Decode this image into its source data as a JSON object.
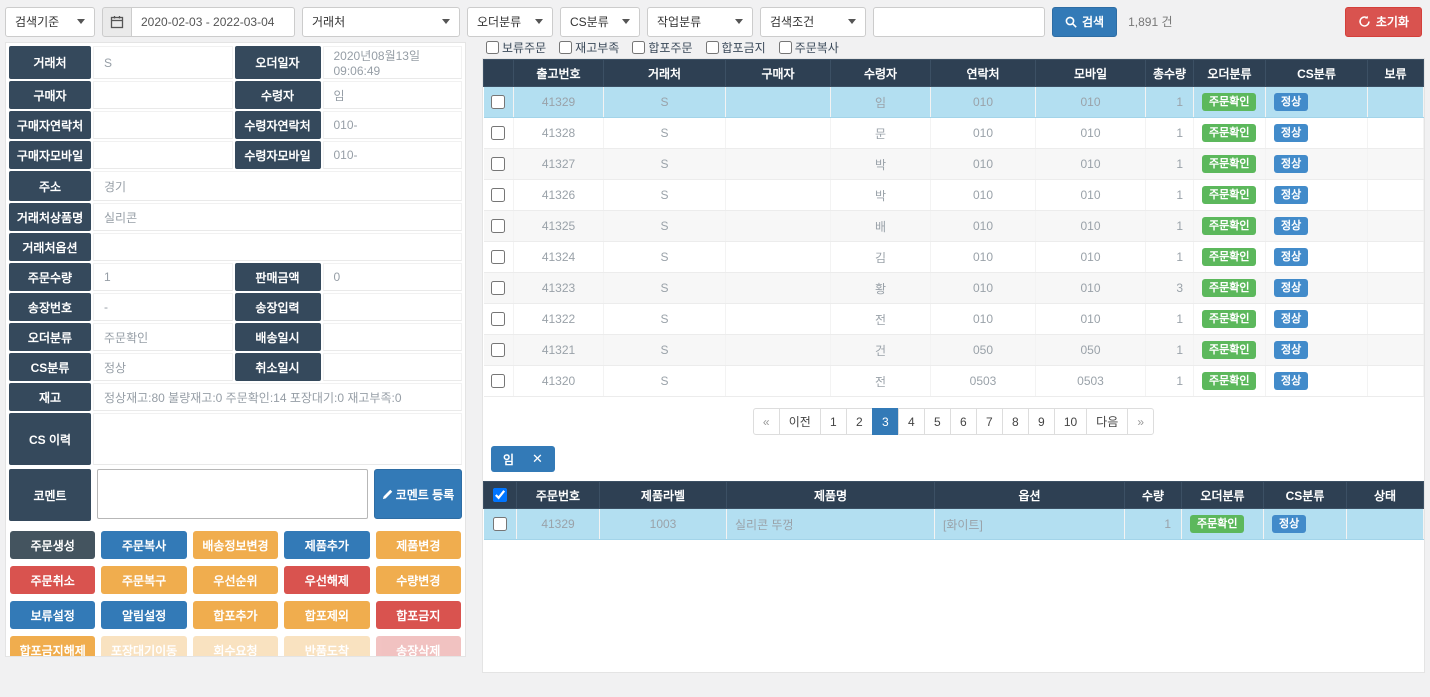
{
  "topbar": {
    "search_basis_select": "검색기준",
    "date_range": "2020-02-03 - 2022-03-04",
    "vendor_select": "거래처",
    "order_class_select": "오더분류",
    "cs_class_select": "CS분류",
    "work_class_select": "작업분류",
    "search_condition_select": "검색조건",
    "search_input_value": "",
    "search_button": "검색",
    "result_count": "1,891 건",
    "reset_button": "초기화"
  },
  "filters": {
    "checkboxes": [
      "보류주문",
      "재고부족",
      "합포주문",
      "합포금지",
      "주문복사"
    ]
  },
  "form": {
    "rows": [
      {
        "type": "pair",
        "left": {
          "label": "거래처",
          "value": "S"
        },
        "right": {
          "label": "오더일자",
          "value": "2020년08월13일 09:06:49"
        }
      },
      {
        "type": "pair",
        "left": {
          "label": "구매자",
          "value": ""
        },
        "right": {
          "label": "수령자",
          "value": "임"
        }
      },
      {
        "type": "pair",
        "left": {
          "label": "구매자연락처",
          "value": ""
        },
        "right": {
          "label": "수령자연락처",
          "value": "010-"
        }
      },
      {
        "type": "pair",
        "left": {
          "label": "구매자모바일",
          "value": ""
        },
        "right": {
          "label": "수령자모바일",
          "value": "010-"
        }
      },
      {
        "type": "full",
        "label": "주소",
        "value": "경기",
        "height": 30
      },
      {
        "type": "full",
        "label": "거래처상품명",
        "value": "실리콘"
      },
      {
        "type": "full",
        "label": "거래처옵션",
        "value": ""
      },
      {
        "type": "pair",
        "left": {
          "label": "주문수량",
          "value": "1"
        },
        "right": {
          "label": "판매금액",
          "value": "0"
        }
      },
      {
        "type": "pair",
        "left": {
          "label": "송장번호",
          "value": "-"
        },
        "right": {
          "label": "송장입력",
          "value": ""
        }
      },
      {
        "type": "pair",
        "left": {
          "label": "오더분류",
          "value": "주문확인"
        },
        "right": {
          "label": "배송일시",
          "value": ""
        }
      },
      {
        "type": "pair",
        "left": {
          "label": "CS분류",
          "value": "정상"
        },
        "right": {
          "label": "취소일시",
          "value": ""
        }
      },
      {
        "type": "full",
        "label": "재고",
        "value": "정상재고:80 불량재고:0 주문확인:14 포장대기:0 재고부족:0"
      },
      {
        "type": "full",
        "label": "CS 이력",
        "value": "",
        "height": 52
      }
    ],
    "comment": {
      "label": "코멘트",
      "value": "",
      "button_label": "코멘트 등록"
    }
  },
  "actions": [
    {
      "label": "주문생성",
      "color": "dark",
      "disabled": false
    },
    {
      "label": "주문복사",
      "color": "blue",
      "disabled": false
    },
    {
      "label": "배송정보변경",
      "color": "orange",
      "disabled": false
    },
    {
      "label": "제품추가",
      "color": "blue",
      "disabled": false
    },
    {
      "label": "제품변경",
      "color": "orange",
      "disabled": false
    },
    {
      "label": "주문취소",
      "color": "red",
      "disabled": false
    },
    {
      "label": "주문복구",
      "color": "orange",
      "disabled": false
    },
    {
      "label": "우선순위",
      "color": "orange",
      "disabled": false
    },
    {
      "label": "우선해제",
      "color": "red",
      "disabled": false
    },
    {
      "label": "수량변경",
      "color": "orange",
      "disabled": false
    },
    {
      "label": "보류설정",
      "color": "blue",
      "disabled": false
    },
    {
      "label": "알림설정",
      "color": "blue",
      "disabled": false
    },
    {
      "label": "합포추가",
      "color": "orange",
      "disabled": false
    },
    {
      "label": "합포제외",
      "color": "orange",
      "disabled": false
    },
    {
      "label": "합포금지",
      "color": "red",
      "disabled": false
    },
    {
      "label": "합포금지해제",
      "color": "orange",
      "disabled": false
    },
    {
      "label": "포장대기이동",
      "color": "orange",
      "disabled": true
    },
    {
      "label": "회수요청",
      "color": "orange",
      "disabled": true
    },
    {
      "label": "반품도착",
      "color": "orange",
      "disabled": true
    },
    {
      "label": "송장삭제",
      "color": "red",
      "disabled": true
    }
  ],
  "orders": {
    "columns": [
      "출고번호",
      "거래처",
      "구매자",
      "수령자",
      "연락처",
      "모바일",
      "총수량",
      "오더분류",
      "CS분류",
      "보류"
    ],
    "rows": [
      {
        "shipment_no": "41329",
        "vendor": "S",
        "buyer": "",
        "receiver": "임",
        "phone": "010",
        "mobile": "010",
        "qty": "1",
        "order_class": "주문확인",
        "cs_class": "정상",
        "hold": "",
        "selected": true
      },
      {
        "shipment_no": "41328",
        "vendor": "S",
        "buyer": "",
        "receiver": "문",
        "phone": "010",
        "mobile": "010",
        "qty": "1",
        "order_class": "주문확인",
        "cs_class": "정상",
        "hold": "",
        "selected": false
      },
      {
        "shipment_no": "41327",
        "vendor": "S",
        "buyer": "",
        "receiver": "박",
        "phone": "010",
        "mobile": "010",
        "qty": "1",
        "order_class": "주문확인",
        "cs_class": "정상",
        "hold": "",
        "selected": false
      },
      {
        "shipment_no": "41326",
        "vendor": "S",
        "buyer": "",
        "receiver": "박",
        "phone": "010",
        "mobile": "010",
        "qty": "1",
        "order_class": "주문확인",
        "cs_class": "정상",
        "hold": "",
        "selected": false
      },
      {
        "shipment_no": "41325",
        "vendor": "S",
        "buyer": "",
        "receiver": "배",
        "phone": "010",
        "mobile": "010",
        "qty": "1",
        "order_class": "주문확인",
        "cs_class": "정상",
        "hold": "",
        "selected": false
      },
      {
        "shipment_no": "41324",
        "vendor": "S",
        "buyer": "",
        "receiver": "김",
        "phone": "010",
        "mobile": "010",
        "qty": "1",
        "order_class": "주문확인",
        "cs_class": "정상",
        "hold": "",
        "selected": false
      },
      {
        "shipment_no": "41323",
        "vendor": "S",
        "buyer": "",
        "receiver": "황",
        "phone": "010",
        "mobile": "010",
        "qty": "3",
        "order_class": "주문확인",
        "cs_class": "정상",
        "hold": "",
        "selected": false
      },
      {
        "shipment_no": "41322",
        "vendor": "S",
        "buyer": "",
        "receiver": "전",
        "phone": "010",
        "mobile": "010",
        "qty": "1",
        "order_class": "주문확인",
        "cs_class": "정상",
        "hold": "",
        "selected": false
      },
      {
        "shipment_no": "41321",
        "vendor": "S",
        "buyer": "",
        "receiver": "건",
        "phone": "050",
        "mobile": "050",
        "qty": "1",
        "order_class": "주문확인",
        "cs_class": "정상",
        "hold": "",
        "selected": false
      },
      {
        "shipment_no": "41320",
        "vendor": "S",
        "buyer": "",
        "receiver": "전",
        "phone": "0503",
        "mobile": "0503",
        "qty": "1",
        "order_class": "주문확인",
        "cs_class": "정상",
        "hold": "",
        "selected": false
      }
    ]
  },
  "pagination": {
    "items": [
      "«",
      "이전",
      "1",
      "2",
      "3",
      "4",
      "5",
      "6",
      "7",
      "8",
      "9",
      "10",
      "다음",
      "»"
    ],
    "active": "3"
  },
  "selected_tag": {
    "label": "임",
    "close_icon": "✕"
  },
  "products": {
    "columns": [
      "주문번호",
      "제품라벨",
      "제품명",
      "옵션",
      "수량",
      "오더분류",
      "CS분류",
      "상태"
    ],
    "header_checkbox_checked": true,
    "rows": [
      {
        "order_no": "41329",
        "product_label": "1003",
        "product_name": "실리콘 뚜껑",
        "option": "[화이트]",
        "qty": "1",
        "order_class": "주문확인",
        "cs_class": "정상",
        "status": "",
        "selected": true
      }
    ]
  },
  "colors": {
    "header_navy": "#2e4053",
    "label_navy": "#35495c",
    "accent_blue": "#337ab7",
    "badge_green": "#5cb85c",
    "badge_blue": "#428bca",
    "warn_orange": "#f0ad4e",
    "danger_red": "#d9534f",
    "selected_row": "#b3dff1"
  }
}
